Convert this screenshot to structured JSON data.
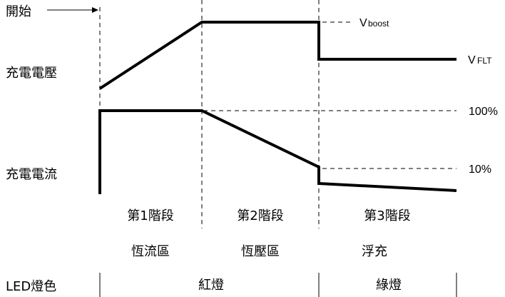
{
  "labels": {
    "start": "開始",
    "voltage": "充電電壓",
    "current": "充電電流",
    "v_boost_main": "V",
    "v_boost_sub": "boost",
    "v_flt_main": "V",
    "v_flt_sub": "FLT",
    "pct_100": "100%",
    "pct_10": "10%"
  },
  "stages": [
    {
      "name": "第1階段",
      "region": "恆流區"
    },
    {
      "name": "第2階段",
      "region": "恆壓區"
    },
    {
      "name": "第3階段",
      "region": "浮充"
    }
  ],
  "led": {
    "label": "LED燈色",
    "red": "紅燈",
    "green": "綠燈"
  }
}
